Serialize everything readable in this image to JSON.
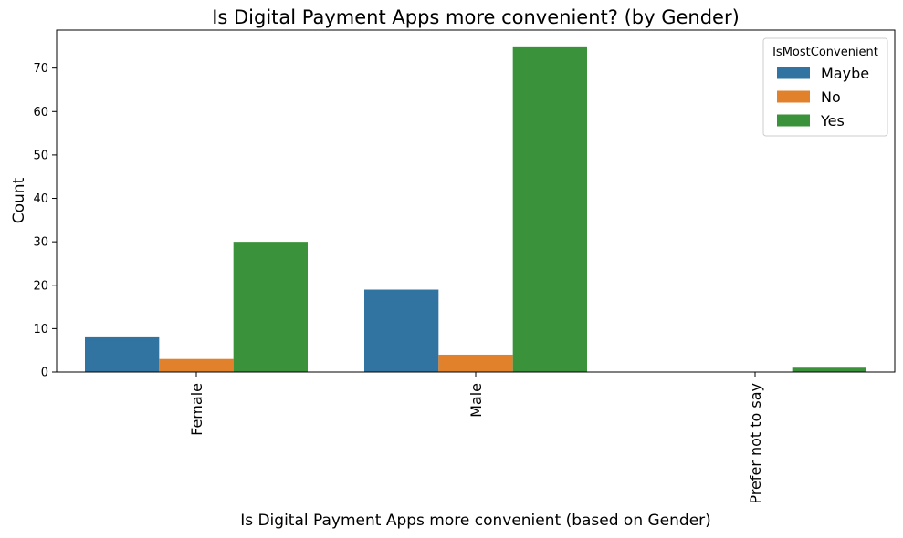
{
  "chart_data": {
    "type": "bar",
    "title": "Is Digital Payment Apps more convenient? (by Gender)",
    "xlabel": "Is Digital Payment Apps more convenient (based on Gender)",
    "ylabel": "Count",
    "categories": [
      "Female",
      "Male",
      "Prefer not to say"
    ],
    "series": [
      {
        "name": "Maybe",
        "color": "#3274a1",
        "values": [
          8,
          19,
          0
        ]
      },
      {
        "name": "No",
        "color": "#e1812c",
        "values": [
          3,
          4,
          0
        ]
      },
      {
        "name": "Yes",
        "color": "#3a923a",
        "values": [
          30,
          75,
          1
        ]
      }
    ],
    "ylim": [
      0,
      78.75
    ],
    "yticks": [
      0,
      10,
      20,
      30,
      40,
      50,
      60,
      70
    ],
    "grid": false,
    "legend": {
      "title": "IsMostConvenient",
      "placement": "top-right"
    }
  }
}
